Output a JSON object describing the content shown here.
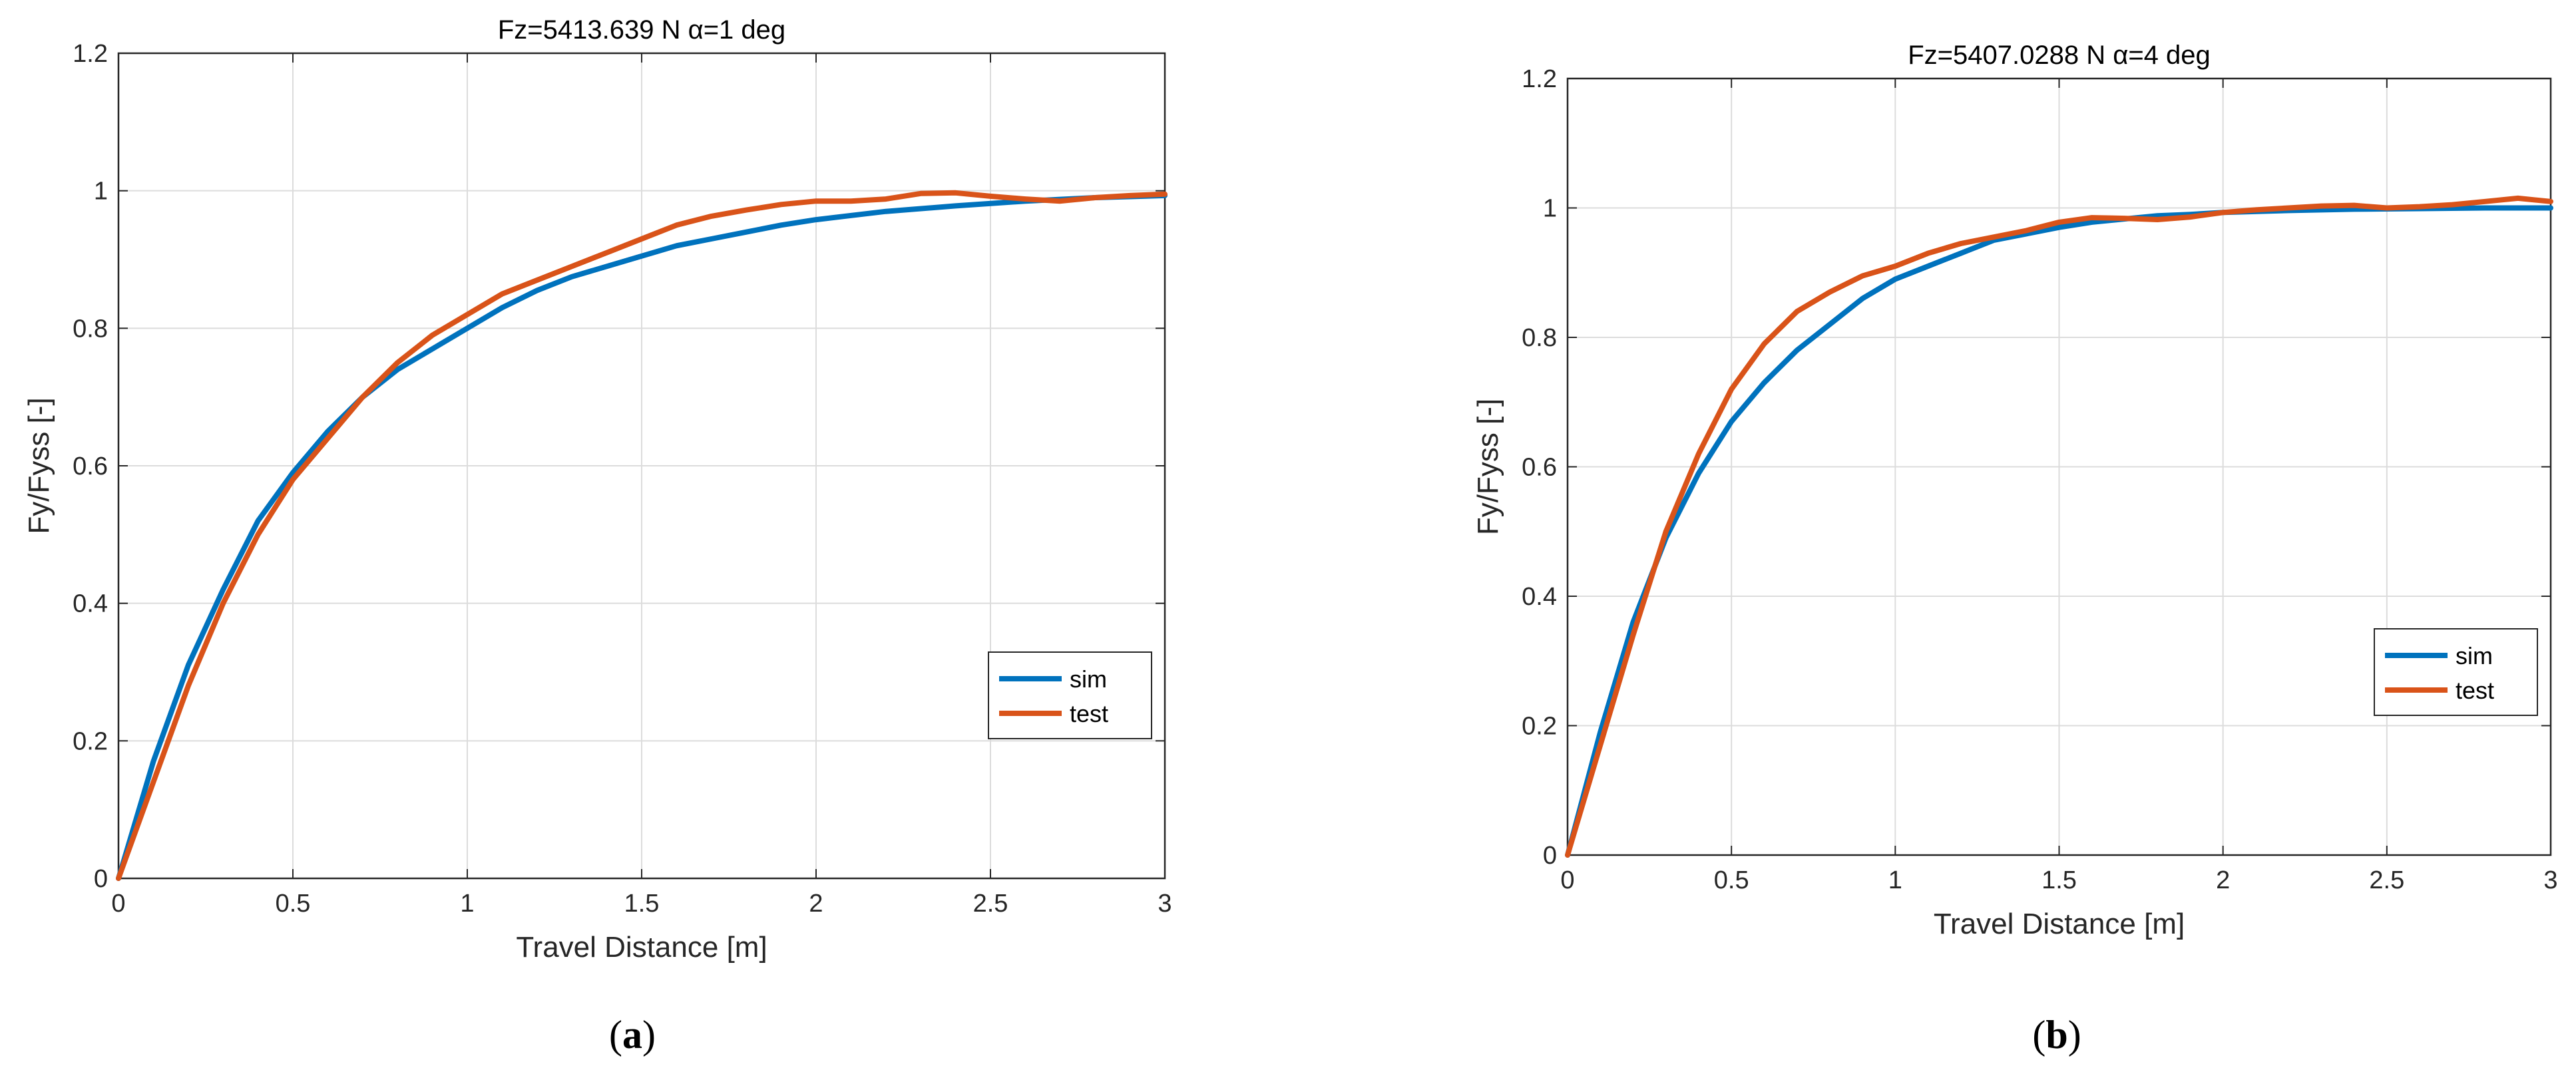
{
  "chart_data": [
    {
      "type": "line",
      "title": "Fz=5413.639 N α=1 deg",
      "xlabel": "Travel Distance [m]",
      "ylabel": "Fy/Fyss [-]",
      "xlim": [
        0,
        3
      ],
      "ylim": [
        0,
        1.2
      ],
      "xticks": [
        "0",
        "0.5",
        "1",
        "1.5",
        "2",
        "2.5",
        "3"
      ],
      "yticks": [
        "0",
        "0.2",
        "0.4",
        "0.6",
        "0.8",
        "1",
        "1.2"
      ],
      "grid": true,
      "legend_position": "lower-right",
      "caption": {
        "open": "(",
        "letter": "a",
        "close": ")"
      },
      "series": [
        {
          "name": "sim",
          "color": "#0072BD",
          "x": [
            0,
            0.1,
            0.2,
            0.3,
            0.4,
            0.5,
            0.6,
            0.7,
            0.8,
            0.9,
            1.0,
            1.1,
            1.2,
            1.3,
            1.4,
            1.5,
            1.6,
            1.7,
            1.8,
            1.9,
            2.0,
            2.2,
            2.4,
            2.6,
            2.8,
            3.0
          ],
          "y": [
            0,
            0.17,
            0.31,
            0.42,
            0.52,
            0.59,
            0.65,
            0.7,
            0.74,
            0.77,
            0.8,
            0.83,
            0.855,
            0.875,
            0.89,
            0.905,
            0.92,
            0.93,
            0.94,
            0.95,
            0.958,
            0.97,
            0.978,
            0.985,
            0.99,
            0.993
          ]
        },
        {
          "name": "test",
          "color": "#D95319",
          "x": [
            0,
            0.1,
            0.2,
            0.3,
            0.4,
            0.5,
            0.6,
            0.7,
            0.8,
            0.9,
            1.0,
            1.1,
            1.2,
            1.3,
            1.4,
            1.5,
            1.6,
            1.7,
            1.8,
            1.9,
            2.0,
            2.1,
            2.2,
            2.3,
            2.4,
            2.5,
            2.6,
            2.7,
            2.8,
            2.9,
            3.0
          ],
          "y": [
            0,
            0.14,
            0.28,
            0.4,
            0.5,
            0.58,
            0.64,
            0.7,
            0.75,
            0.79,
            0.82,
            0.85,
            0.87,
            0.89,
            0.91,
            0.93,
            0.95,
            0.963,
            0.972,
            0.98,
            0.985,
            0.985,
            0.988,
            0.996,
            0.997,
            0.992,
            0.988,
            0.985,
            0.99,
            0.993,
            0.995
          ]
        }
      ]
    },
    {
      "type": "line",
      "title": "Fz=5407.0288 N α=4 deg",
      "xlabel": "Travel Distance [m]",
      "ylabel": "Fy/Fyss [-]",
      "xlim": [
        0,
        3
      ],
      "ylim": [
        0,
        1.2
      ],
      "xticks": [
        "0",
        "0.5",
        "1",
        "1.5",
        "2",
        "2.5",
        "3"
      ],
      "yticks": [
        "0",
        "0.2",
        "0.4",
        "0.6",
        "0.8",
        "1",
        "1.2"
      ],
      "grid": true,
      "legend_position": "lower-right",
      "caption": {
        "open": "(",
        "letter": "b",
        "close": ")"
      },
      "series": [
        {
          "name": "sim",
          "color": "#0072BD",
          "x": [
            0,
            0.1,
            0.2,
            0.3,
            0.4,
            0.5,
            0.6,
            0.7,
            0.8,
            0.9,
            1.0,
            1.1,
            1.2,
            1.3,
            1.4,
            1.5,
            1.6,
            1.7,
            1.8,
            1.9,
            2.0,
            2.2,
            2.4,
            2.6,
            2.8,
            3.0
          ],
          "y": [
            0,
            0.19,
            0.36,
            0.49,
            0.59,
            0.67,
            0.73,
            0.78,
            0.82,
            0.86,
            0.89,
            0.91,
            0.93,
            0.95,
            0.96,
            0.97,
            0.978,
            0.983,
            0.988,
            0.99,
            0.993,
            0.996,
            0.998,
            0.999,
            1.0,
            1.0
          ]
        },
        {
          "name": "test",
          "color": "#D95319",
          "x": [
            0,
            0.1,
            0.2,
            0.3,
            0.4,
            0.5,
            0.6,
            0.7,
            0.8,
            0.9,
            1.0,
            1.1,
            1.2,
            1.3,
            1.4,
            1.5,
            1.6,
            1.7,
            1.8,
            1.9,
            2.0,
            2.1,
            2.2,
            2.3,
            2.4,
            2.5,
            2.6,
            2.7,
            2.8,
            2.9,
            3.0
          ],
          "y": [
            0,
            0.17,
            0.34,
            0.5,
            0.62,
            0.72,
            0.79,
            0.84,
            0.87,
            0.895,
            0.91,
            0.93,
            0.945,
            0.955,
            0.965,
            0.978,
            0.985,
            0.984,
            0.982,
            0.986,
            0.993,
            0.997,
            1.0,
            1.003,
            1.004,
            1.0,
            1.002,
            1.005,
            1.01,
            1.015,
            1.01
          ]
        }
      ]
    }
  ]
}
